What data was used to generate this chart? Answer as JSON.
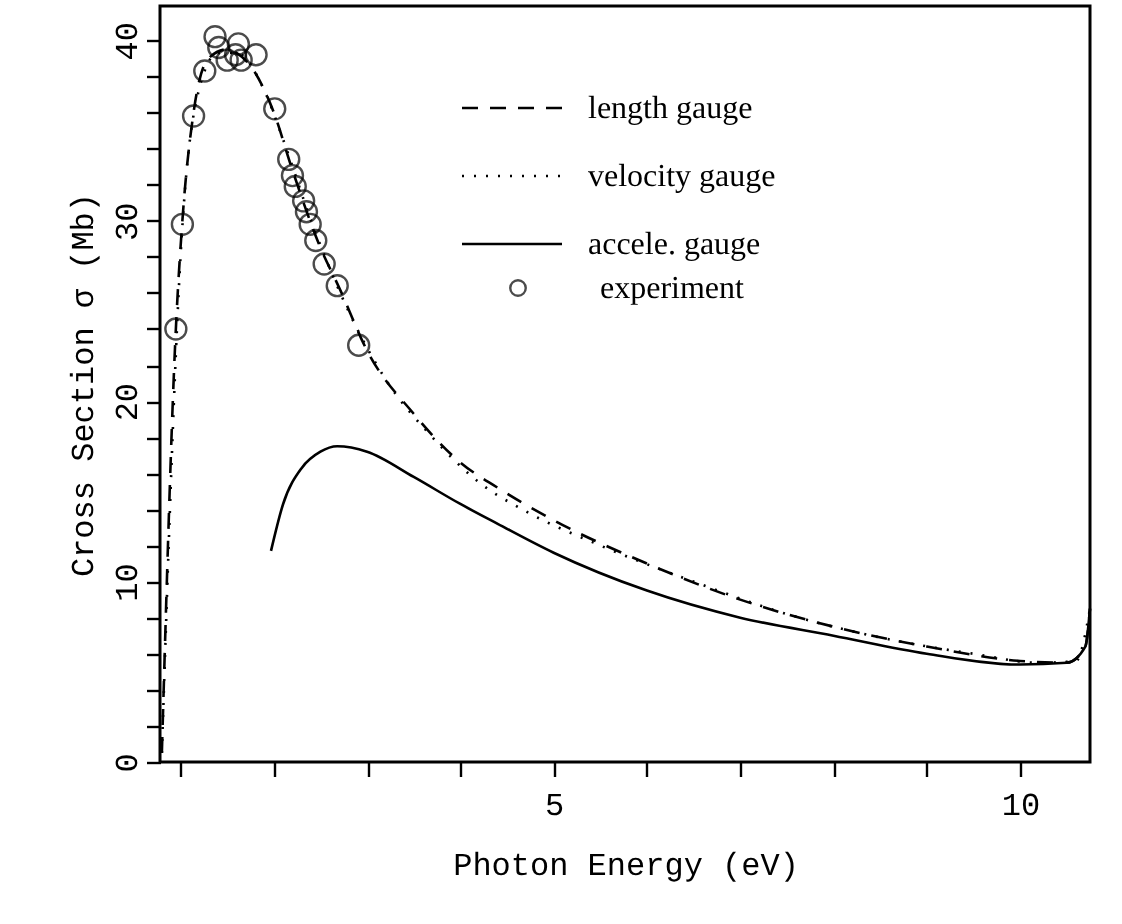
{
  "chart_data": {
    "type": "line",
    "xlabel": "Photon Energy (eV)",
    "ylabel": "Cross Section σ (Mb)",
    "xlim": [
      0.78,
      10.75
    ],
    "ylim": [
      0,
      41.9
    ],
    "xticks": [
      {
        "value": 1,
        "label": null
      },
      {
        "value": 2,
        "label": null
      },
      {
        "value": 3,
        "label": null
      },
      {
        "value": 4,
        "label": null
      },
      5,
      {
        "value": 6,
        "label": null
      },
      {
        "value": 7,
        "label": null
      },
      {
        "value": 8,
        "label": null
      },
      {
        "value": 9,
        "label": null
      },
      10
    ],
    "yticks": [
      0,
      {
        "value": 2,
        "label": null
      },
      {
        "value": 4,
        "label": null
      },
      {
        "value": 6,
        "label": null
      },
      {
        "value": 8,
        "label": null
      },
      10,
      {
        "value": 12,
        "label": null
      },
      {
        "value": 14,
        "label": null
      },
      {
        "value": 16,
        "label": null
      },
      {
        "value": 18,
        "label": null
      },
      20,
      {
        "value": 22,
        "label": null
      },
      {
        "value": 24,
        "label": null
      },
      {
        "value": 26,
        "label": null
      },
      {
        "value": 28,
        "label": null
      },
      30,
      {
        "value": 32,
        "label": null
      },
      {
        "value": 34,
        "label": null
      },
      {
        "value": 36,
        "label": null
      },
      {
        "value": 38,
        "label": null
      },
      40
    ],
    "grid": false,
    "legend": "top right",
    "series": [
      {
        "name": "length gauge",
        "line_style": "dashed",
        "color": "#000000",
        "x": [
          0.8,
          0.95,
          1.02,
          1.14,
          1.3,
          1.5,
          1.6,
          1.8,
          2.0,
          2.2,
          2.5,
          2.7,
          3.0,
          3.5,
          4.0,
          4.4,
          5,
          6,
          7,
          8,
          9,
          10,
          10.5,
          10.7,
          10.75
        ],
        "values": [
          0.5,
          24,
          30,
          36,
          39,
          39.5,
          39.3,
          38.2,
          36,
          32.8,
          28.5,
          26.3,
          22.8,
          19.3,
          16.6,
          15.2,
          13.4,
          11.0,
          9.0,
          7.5,
          6.4,
          5.6,
          5.5,
          6.4,
          8.5
        ]
      },
      {
        "name": "velocity gauge",
        "line_style": "dotted",
        "color": "#000000",
        "x": [
          0.8,
          1.0,
          1.2,
          1.4,
          1.6,
          1.9,
          2.1,
          2.4,
          2.8,
          3.2,
          3.7,
          4.2,
          4.7,
          5.5,
          6.5,
          7.5,
          8.5,
          9.5,
          10.2,
          10.6,
          10.75
        ],
        "values": [
          0.5,
          28,
          37.3,
          39.3,
          39.3,
          37.2,
          34.5,
          30,
          25,
          21.2,
          18,
          15.5,
          13.9,
          12,
          10,
          8.2,
          6.9,
          6.0,
          5.5,
          5.6,
          8.5
        ]
      },
      {
        "name": "accele. gauge",
        "line_style": "solid",
        "color": "#000000",
        "x": [
          1.97,
          2.1,
          2.3,
          2.5,
          2.68,
          3.0,
          3.5,
          4.0,
          4.4,
          5,
          6,
          7,
          8,
          9,
          10,
          10.5,
          10.7,
          10.75
        ],
        "values": [
          11.7,
          14.3,
          16.3,
          17.2,
          17.5,
          17.2,
          15.8,
          14.3,
          13.2,
          11.6,
          9.5,
          8.0,
          7.0,
          6.0,
          5.4,
          5.5,
          6.4,
          8.5
        ]
      },
      {
        "name": "experiment",
        "type": "scatter",
        "marker": "circle",
        "color": "#000000",
        "x": [
          0.95,
          1.02,
          1.14,
          1.26,
          1.37,
          1.41,
          1.5,
          1.59,
          1.62,
          1.65,
          1.81,
          2.01,
          2.16,
          2.2,
          2.23,
          2.32,
          2.35,
          2.39,
          2.45,
          2.54,
          2.68,
          2.91
        ],
        "values": [
          24.0,
          29.8,
          35.8,
          38.3,
          40.2,
          39.6,
          38.9,
          39.2,
          39.8,
          38.9,
          39.2,
          36.2,
          33.4,
          32.5,
          31.9,
          31.1,
          30.5,
          29.8,
          28.9,
          27.6,
          26.4,
          23.1
        ]
      }
    ]
  }
}
